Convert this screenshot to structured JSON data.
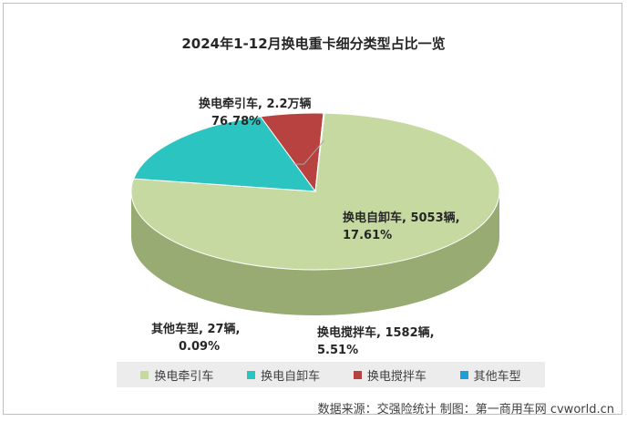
{
  "chart_data": {
    "type": "pie",
    "title": "2024年1-12月换电重卡细分类型占比一览",
    "slices": [
      {
        "name": "换电牵引车",
        "label_line1": "换电牵引车, 2.2万辆",
        "label_line2": "76.78%",
        "value": 76.78,
        "color": "#c5d9a0",
        "side": "#97ab73"
      },
      {
        "name": "换电自卸车",
        "label_line1": "换电自卸车, 5053辆,",
        "label_line2": "17.61%",
        "value": 17.61,
        "color": "#2bc4c0",
        "side": "#15585a"
      },
      {
        "name": "换电搅拌车",
        "label_line1": "换电搅拌车, 1582辆,",
        "label_line2": "5.51%",
        "value": 5.51,
        "color": "#b8423f",
        "side": "#6a1d1c"
      },
      {
        "name": "其他车型",
        "label_line1": "其他车型, 27辆,",
        "label_line2": "0.09%",
        "value": 0.09,
        "color": "#1e9fd8",
        "side": "#126b90"
      }
    ],
    "legend_position": "bottom"
  },
  "source": "数据来源：交强险统计 制图：第一商用车网 cvworld.cn"
}
